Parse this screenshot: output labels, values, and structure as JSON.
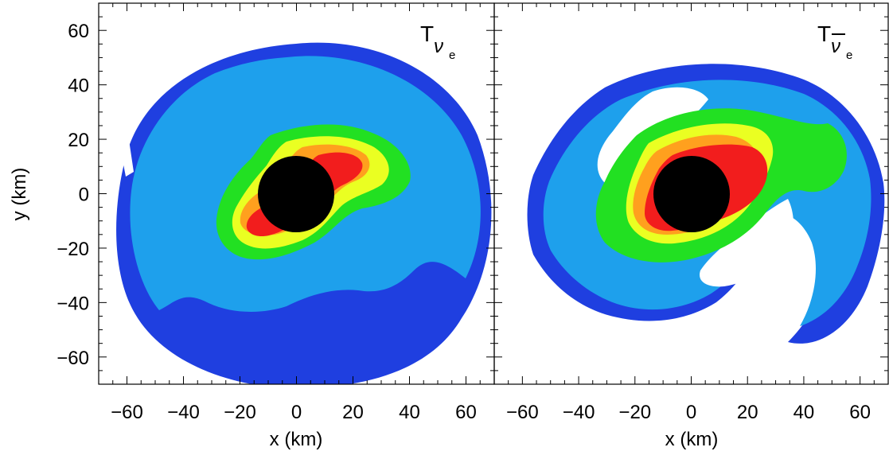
{
  "chart_data": {
    "type": "heatmap",
    "colors": {
      "dark_blue": "#1f3fe0",
      "light_blue": "#1ea0ec",
      "green": "#22e022",
      "yellow": "#eaff22",
      "orange": "#ffa01e",
      "red": "#f21d1d",
      "core": "#000000"
    },
    "panels": [
      {
        "label_base": "T",
        "label_sub": "ν",
        "label_subsub": "e",
        "bar": false,
        "xlim": [
          -70,
          70
        ],
        "ylim": [
          -70,
          70
        ],
        "xticks": [
          -60,
          -40,
          -20,
          0,
          20,
          40,
          60
        ],
        "yticks": [
          -60,
          -40,
          -20,
          0,
          20,
          40,
          60
        ],
        "xlabel": "x (km)",
        "ylabel": "y (km)",
        "core_radius": 13.5
      },
      {
        "label_base": "T",
        "label_sub": "ν",
        "label_subsub": "e",
        "bar": true,
        "xlim": [
          -70,
          70
        ],
        "ylim": [
          -70,
          70
        ],
        "xticks": [
          -60,
          -40,
          -20,
          0,
          20,
          40,
          60
        ],
        "yticks": [],
        "xlabel": "x (km)",
        "ylabel": "",
        "core_radius": 13.5
      }
    ]
  }
}
